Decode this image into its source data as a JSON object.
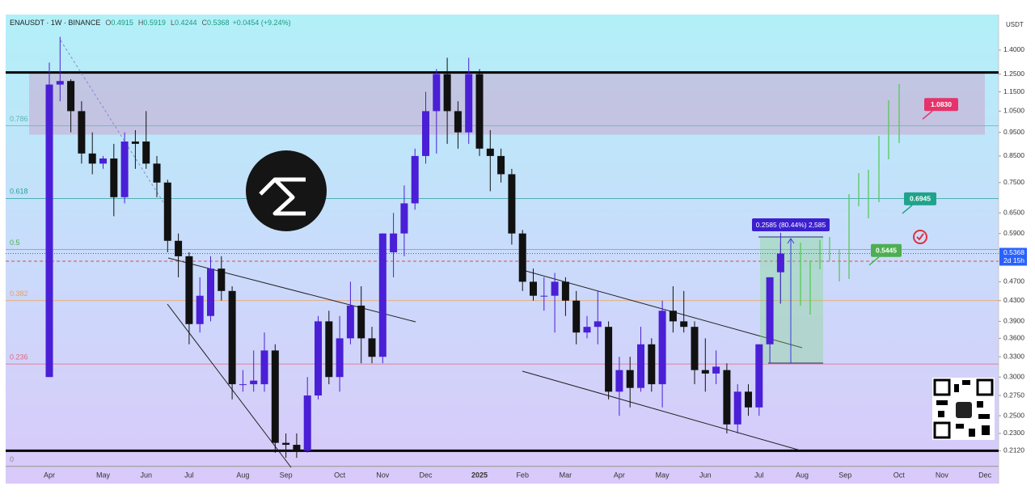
{
  "chart_data": {
    "type": "candlestick",
    "header": {
      "symbol": "ENAUSDT · 1W · BINANCE",
      "legend": [
        {
          "key": "O",
          "value": "0.4915"
        },
        {
          "key": "H",
          "value": "0.5919"
        },
        {
          "key": "L",
          "value": "0.4244"
        },
        {
          "key": "C",
          "value": "0.5368"
        }
      ],
      "change": "+0.0454 (+9.24%)"
    },
    "currency": "USDT",
    "categories": [
      "Apr",
      null,
      null,
      null,
      null,
      "May",
      null,
      null,
      null,
      "Jun",
      null,
      null,
      null,
      "Jul",
      null,
      null,
      null,
      null,
      "Aug",
      null,
      null,
      null,
      "Sep",
      null,
      null,
      null,
      null,
      "Oct",
      null,
      null,
      null,
      "Nov",
      null,
      null,
      null,
      "Dec",
      null,
      null,
      null,
      null,
      "2025",
      null,
      null,
      null,
      "Feb",
      null,
      null,
      null,
      "Mar",
      null,
      null,
      null,
      null,
      "Apr",
      null,
      null,
      null,
      "May",
      null,
      null,
      null,
      "Jun",
      null,
      null,
      null,
      null,
      "Jul",
      null,
      null,
      null,
      "Aug",
      null,
      null,
      null,
      "Sep",
      null,
      null,
      null,
      null,
      "Oct",
      null,
      null,
      null,
      "Nov",
      null,
      null,
      null,
      "Dec"
    ],
    "open": [
      0.3,
      1.19,
      1.21,
      1.05,
      0.86,
      0.82,
      0.84,
      0.7,
      0.91,
      0.91,
      0.82,
      0.75,
      0.57,
      0.53,
      0.385,
      0.4,
      0.5,
      0.45,
      0.29,
      0.29,
      0.29,
      0.34,
      0.22,
      0.218,
      0.212,
      0.275,
      0.39,
      0.3,
      0.36,
      0.42,
      0.36,
      0.33,
      0.54,
      0.59,
      0.68,
      0.85,
      1.05,
      1.25,
      1.05,
      0.95,
      1.25,
      0.88,
      0.85,
      0.78,
      0.59,
      0.47,
      0.44,
      0.44,
      0.47,
      0.43,
      0.37,
      0.38,
      0.38,
      0.28,
      0.31,
      0.285,
      0.35,
      0.29,
      0.41,
      0.39,
      0.38,
      0.31,
      0.305,
      0.31,
      0.24,
      0.28,
      0.26,
      0.35,
      0.4915,
      null,
      null,
      null,
      null,
      null,
      null,
      null,
      null,
      null,
      null,
      null,
      null,
      null,
      null,
      null,
      null,
      null,
      null,
      null
    ],
    "high": [
      1.32,
      1.49,
      1.22,
      1.1,
      0.95,
      0.85,
      0.9,
      0.95,
      0.96,
      1.05,
      0.85,
      0.76,
      0.59,
      0.54,
      0.48,
      0.53,
      0.53,
      0.46,
      0.31,
      0.34,
      0.37,
      0.35,
      0.23,
      0.23,
      0.3,
      0.4,
      0.41,
      0.4,
      0.47,
      0.46,
      0.38,
      0.59,
      0.65,
      0.74,
      0.88,
      1.15,
      1.28,
      1.35,
      1.1,
      1.35,
      1.28,
      0.96,
      0.88,
      0.8,
      0.6,
      0.5,
      0.48,
      0.49,
      0.48,
      0.45,
      0.4,
      0.45,
      0.39,
      0.33,
      0.33,
      0.38,
      0.36,
      0.43,
      0.46,
      0.45,
      0.39,
      0.36,
      0.34,
      0.32,
      0.29,
      0.29,
      0.35,
      0.48,
      0.5919,
      null,
      null,
      null,
      null,
      null,
      null,
      null,
      null,
      null,
      null,
      null,
      null,
      null,
      null,
      null,
      null,
      null,
      null,
      null
    ],
    "low": [
      0.3,
      1.1,
      0.95,
      0.82,
      0.78,
      0.8,
      0.64,
      0.68,
      0.8,
      0.8,
      0.7,
      0.54,
      0.48,
      0.35,
      0.37,
      0.39,
      0.43,
      0.27,
      0.28,
      0.28,
      0.28,
      0.21,
      0.205,
      0.205,
      0.21,
      0.27,
      0.29,
      0.28,
      0.35,
      0.32,
      0.32,
      0.32,
      0.48,
      0.53,
      0.66,
      0.82,
      0.86,
      0.9,
      0.88,
      0.9,
      0.85,
      0.72,
      0.75,
      0.56,
      0.45,
      0.43,
      0.41,
      0.37,
      0.4,
      0.35,
      0.36,
      0.35,
      0.27,
      0.25,
      0.26,
      0.28,
      0.28,
      0.26,
      0.37,
      0.37,
      0.29,
      0.28,
      0.29,
      0.23,
      0.23,
      0.25,
      0.25,
      0.32,
      0.4244,
      null,
      null,
      null,
      null,
      null,
      null,
      null,
      null,
      null,
      null,
      null,
      null,
      null,
      null,
      null,
      null,
      null,
      null,
      null
    ],
    "close": [
      1.19,
      1.21,
      1.05,
      0.86,
      0.82,
      0.84,
      0.7,
      0.91,
      0.9,
      0.82,
      0.75,
      0.57,
      0.53,
      0.385,
      0.44,
      0.5,
      0.45,
      0.29,
      0.29,
      0.295,
      0.34,
      0.22,
      0.218,
      0.212,
      0.275,
      0.39,
      0.3,
      0.36,
      0.42,
      0.36,
      0.33,
      0.59,
      0.59,
      0.68,
      0.85,
      1.05,
      1.25,
      1.05,
      0.95,
      1.25,
      0.88,
      0.85,
      0.78,
      0.59,
      0.47,
      0.44,
      0.44,
      0.47,
      0.43,
      0.37,
      0.38,
      0.39,
      0.28,
      0.31,
      0.285,
      0.35,
      0.29,
      0.41,
      0.39,
      0.38,
      0.31,
      0.305,
      0.315,
      0.24,
      0.28,
      0.26,
      0.35,
      0.48,
      0.5368,
      null,
      null,
      null,
      null,
      null,
      null,
      null,
      null,
      null,
      null,
      null,
      null,
      null,
      null,
      null,
      null,
      null,
      null,
      null
    ],
    "up_color": "#4a1fd6",
    "down_color": "#111111",
    "log_scale": true,
    "ylim": [
      0.193,
      1.655
    ],
    "yticks": [
      {
        "value": 1.4,
        "label": "1.4000"
      },
      {
        "value": 1.25,
        "label": "1.2500"
      },
      {
        "value": 1.15,
        "label": "1.1500"
      },
      {
        "value": 1.05,
        "label": "1.0500"
      },
      {
        "value": 0.95,
        "label": "0.9500"
      },
      {
        "value": 0.85,
        "label": "0.8500"
      },
      {
        "value": 0.75,
        "label": "0.7500"
      },
      {
        "value": 0.65,
        "label": "0.6500"
      },
      {
        "value": 0.59,
        "label": "0.5900"
      },
      {
        "value": 0.47,
        "label": "0.4700"
      },
      {
        "value": 0.43,
        "label": "0.4300"
      },
      {
        "value": 0.39,
        "label": "0.3900"
      },
      {
        "value": 0.36,
        "label": "0.3600"
      },
      {
        "value": 0.33,
        "label": "0.3300"
      },
      {
        "value": 0.3,
        "label": "0.3000"
      },
      {
        "value": 0.275,
        "label": "0.2750"
      },
      {
        "value": 0.25,
        "label": "0.2500"
      },
      {
        "value": 0.23,
        "label": "0.2300"
      },
      {
        "value": 0.212,
        "label": "0.2120"
      }
    ],
    "price_label": {
      "value": 0.5368,
      "label": "0.5368",
      "countdown": "2d 15h",
      "color": "#2962ff"
    },
    "fib": {
      "levels": [
        0.786,
        0.618,
        0.5,
        0.382,
        0.236,
        0
      ],
      "prices": [
        0.98,
        0.696,
        0.547,
        0.43,
        0.319,
        0.197
      ],
      "colors": [
        "#5fb4b4",
        "#2aa198",
        "#4caf50",
        "#f0a050",
        "#e06a80",
        "#8a8a8a"
      ]
    },
    "resistance_zone": [
      0.94,
      1.26
    ],
    "key_levels": [
      1.26,
      0.212
    ],
    "targets": {
      "values": [
        1.083,
        0.6945,
        0.5445
      ],
      "value_labels": [
        "1.0830",
        "0.6945",
        "0.5445"
      ],
      "colors": [
        "#e5336b",
        "#1fa38a",
        "#4caf50"
      ]
    },
    "measure": "0.2585 (80.44%) 2,585"
  }
}
